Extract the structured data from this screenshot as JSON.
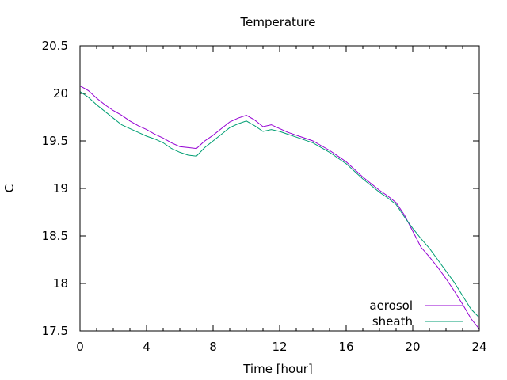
{
  "chart_data": {
    "type": "line",
    "title": "Temperature",
    "xlabel": "Time [hour]",
    "ylabel": "C",
    "xlim": [
      0,
      24
    ],
    "ylim": [
      17.5,
      20.5
    ],
    "xticks": [
      0,
      4,
      8,
      12,
      16,
      20,
      24
    ],
    "yticks": [
      17.5,
      18,
      18.5,
      19,
      19.5,
      20,
      20.5
    ],
    "legend": "bottom-right",
    "grid": false,
    "series": [
      {
        "name": "aerosol",
        "color": "#9400d3",
        "x": [
          0,
          0.5,
          1,
          1.5,
          2,
          2.5,
          3,
          3.5,
          4,
          4.5,
          5,
          5.5,
          6,
          6.5,
          7,
          7.5,
          8,
          8.5,
          9,
          9.5,
          10,
          10.5,
          11,
          11.5,
          12,
          12.5,
          13,
          13.5,
          14,
          14.5,
          15,
          15.5,
          16,
          16.5,
          17,
          17.5,
          18,
          18.5,
          19,
          19.5,
          20,
          20.5,
          21,
          21.5,
          22,
          22.5,
          23,
          23.5,
          24
        ],
        "y": [
          20.08,
          20.03,
          19.95,
          19.88,
          19.82,
          19.77,
          19.71,
          19.66,
          19.62,
          19.57,
          19.53,
          19.48,
          19.44,
          19.43,
          19.42,
          19.5,
          19.56,
          19.63,
          19.7,
          19.74,
          19.77,
          19.72,
          19.65,
          19.67,
          19.63,
          19.59,
          19.56,
          19.53,
          19.5,
          19.45,
          19.4,
          19.34,
          19.28,
          19.2,
          19.12,
          19.05,
          18.98,
          18.92,
          18.85,
          18.72,
          18.55,
          18.38,
          18.28,
          18.17,
          18.05,
          17.92,
          17.78,
          17.63,
          17.52
        ]
      },
      {
        "name": "sheath",
        "color": "#009e73",
        "x": [
          0,
          0.5,
          1,
          1.5,
          2,
          2.5,
          3,
          3.5,
          4,
          4.5,
          5,
          5.5,
          6,
          6.5,
          7,
          7.5,
          8,
          8.5,
          9,
          9.5,
          10,
          10.5,
          11,
          11.5,
          12,
          12.5,
          13,
          13.5,
          14,
          14.5,
          15,
          15.5,
          16,
          16.5,
          17,
          17.5,
          18,
          18.5,
          19,
          19.5,
          20,
          20.5,
          21,
          21.5,
          22,
          22.5,
          23,
          23.5,
          24
        ],
        "y": [
          20.02,
          19.96,
          19.88,
          19.81,
          19.74,
          19.67,
          19.63,
          19.59,
          19.55,
          19.52,
          19.48,
          19.42,
          19.38,
          19.35,
          19.34,
          19.43,
          19.5,
          19.57,
          19.64,
          19.68,
          19.71,
          19.66,
          19.6,
          19.62,
          19.6,
          19.57,
          19.54,
          19.51,
          19.48,
          19.43,
          19.38,
          19.32,
          19.26,
          19.18,
          19.1,
          19.03,
          18.96,
          18.9,
          18.83,
          18.7,
          18.58,
          18.47,
          18.37,
          18.25,
          18.13,
          18.01,
          17.87,
          17.73,
          17.64
        ]
      }
    ]
  }
}
